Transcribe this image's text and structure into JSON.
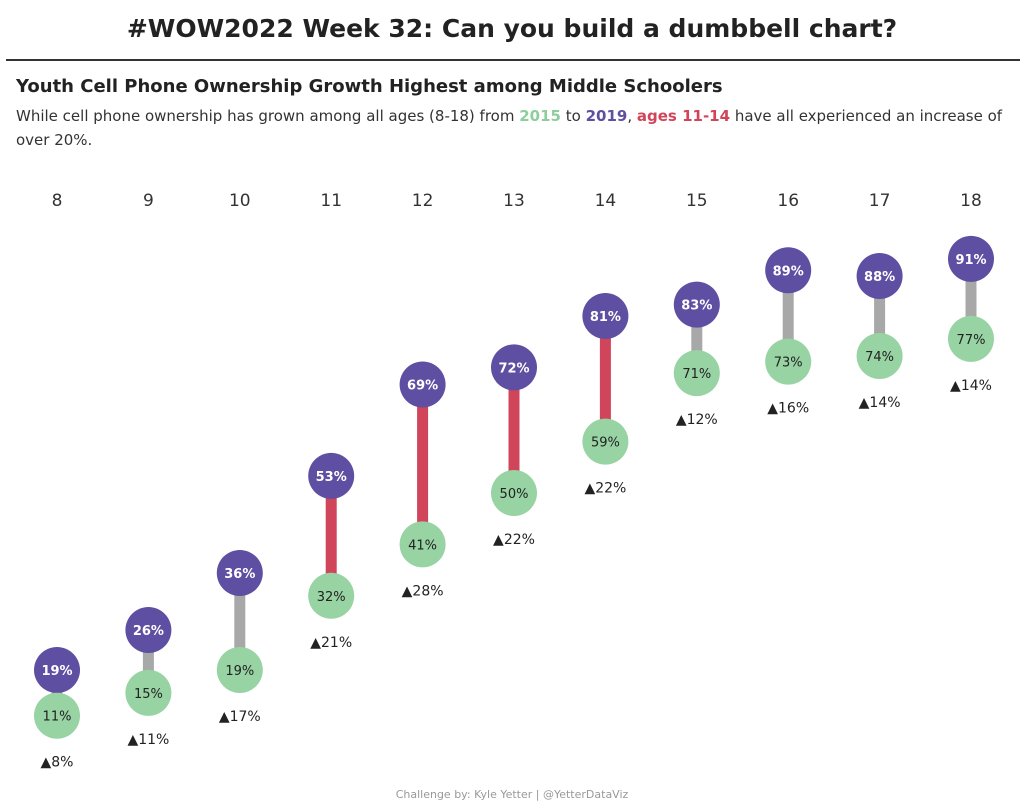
{
  "title": "#WOW2022 Week 32: Can you build a dumbbell chart?",
  "chart_data": {
    "type": "dumbbell",
    "title": "Youth Cell Phone Ownership Growth Highest among Middle Schoolers",
    "subtitle": {
      "part1": "While cell phone ownership has grown among all ages (8-18) from ",
      "year_start": "2015",
      "part2": " to ",
      "year_end": "2019",
      "part3": ", ",
      "highlight": "ages 11-14",
      "part4": " have all experienced an increase of over 20%."
    },
    "categories": [
      "8",
      "9",
      "10",
      "11",
      "12",
      "13",
      "14",
      "15",
      "16",
      "17",
      "18"
    ],
    "series": [
      {
        "name": "2015",
        "values": [
          11,
          15,
          19,
          32,
          41,
          50,
          59,
          71,
          73,
          74,
          77
        ]
      },
      {
        "name": "2019",
        "values": [
          19,
          26,
          36,
          53,
          69,
          72,
          81,
          83,
          89,
          88,
          91
        ]
      }
    ],
    "change_labels": [
      "▲8%",
      "▲11%",
      "▲17%",
      "▲21%",
      "▲28%",
      "▲22%",
      "▲22%",
      "▲12%",
      "▲16%",
      "▲14%",
      "▲14%"
    ],
    "highlighted_categories": [
      "11",
      "12",
      "13",
      "14"
    ],
    "colors": {
      "2015": "#97d3a3",
      "2019": "#5e4fa2",
      "highlight_bar": "#d1455a",
      "bar": "#a8a8a8"
    },
    "grid": false,
    "legend": "none"
  },
  "footer": "Challenge by: Kyle Yetter | @YetterDataViz"
}
